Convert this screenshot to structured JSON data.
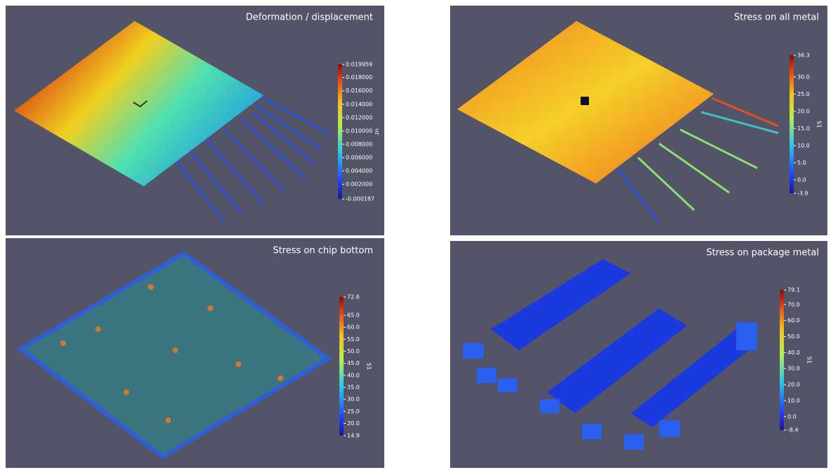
{
  "panels": [
    {
      "title": "Deformation / displacement",
      "colorbar": {
        "label": "uz",
        "ylim": [
          -0.000187,
          0.019959
        ],
        "ticks": [
          0.019959,
          {
            "value": 0.018,
            "label": "0.018000"
          },
          {
            "value": 0.016,
            "label": "0.016000"
          },
          {
            "value": 0.014,
            "label": "0.014000"
          },
          {
            "value": 0.012,
            "label": "0.012000"
          },
          {
            "value": 0.01,
            "label": "0.010000"
          },
          {
            "value": 0.008,
            "label": "0.008000"
          },
          {
            "value": 0.006,
            "label": "0.006000"
          },
          {
            "value": 0.004,
            "label": "0.004000"
          },
          {
            "value": 0.002,
            "label": "0.002000"
          },
          -0.000187
        ]
      }
    },
    {
      "title": "Stress on all metal",
      "colorbar": {
        "label": "S1",
        "ylim": [
          -3.9,
          36.3
        ],
        "ticks": [
          36.3,
          {
            "value": 30,
            "label": "30.0"
          },
          {
            "value": 25,
            "label": "25.0"
          },
          {
            "value": 20,
            "label": "20.0"
          },
          {
            "value": 15,
            "label": "15.0"
          },
          {
            "value": 10,
            "label": "10.0"
          },
          {
            "value": 5,
            "label": "5.0"
          },
          {
            "value": 0,
            "label": "0.0"
          },
          -3.9
        ]
      }
    },
    {
      "title": "Stress on chip bottom",
      "colorbar": {
        "label": "S1",
        "ylim": [
          14.9,
          72.6
        ],
        "ticks": [
          72.6,
          {
            "value": 65,
            "label": "65.0"
          },
          {
            "value": 60,
            "label": "60.0"
          },
          {
            "value": 55,
            "label": "55.0"
          },
          {
            "value": 50,
            "label": "50.0"
          },
          {
            "value": 45,
            "label": "45.0"
          },
          {
            "value": 40,
            "label": "40.0"
          },
          {
            "value": 35,
            "label": "35.0"
          },
          {
            "value": 30,
            "label": "30.0"
          },
          {
            "value": 25,
            "label": "25.0"
          },
          {
            "value": 20,
            "label": "20.0"
          },
          14.9
        ]
      }
    },
    {
      "title": "Stress on package metal",
      "colorbar": {
        "label": "S1",
        "ylim": [
          -8.4,
          79.1
        ],
        "ticks": [
          79.1,
          {
            "value": 70,
            "label": "70.0"
          },
          {
            "value": 60,
            "label": "60.0"
          },
          {
            "value": 50,
            "label": "50.0"
          },
          {
            "value": 40,
            "label": "40.0"
          },
          {
            "value": 30,
            "label": "30.0"
          },
          {
            "value": 20,
            "label": "20.0"
          },
          {
            "value": 10,
            "label": "10.0"
          },
          {
            "value": 0,
            "label": "0.0"
          },
          -8.4
        ]
      }
    }
  ]
}
